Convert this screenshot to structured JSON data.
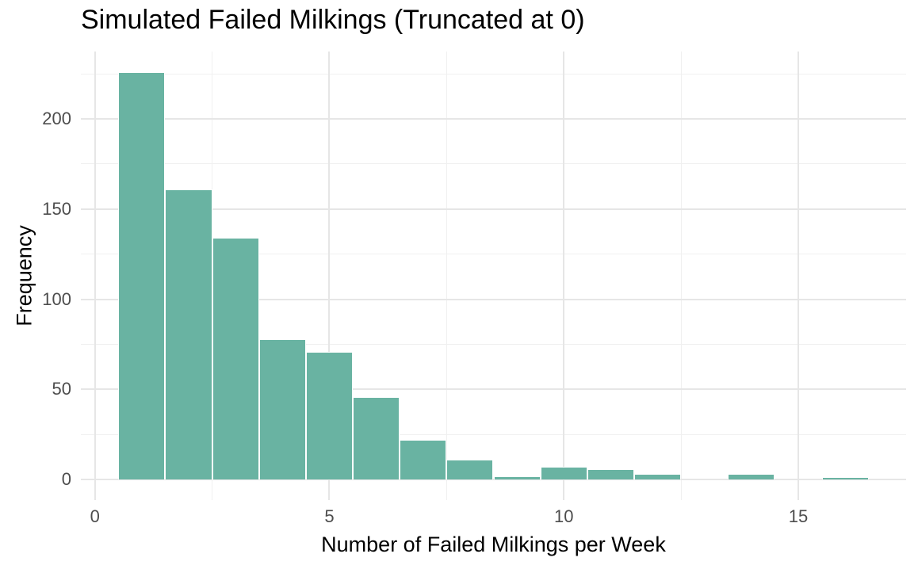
{
  "page": {
    "background": "#ffffff"
  },
  "chart_data": {
    "type": "bar",
    "variant": "histogram",
    "title": "Simulated Failed Milkings (Truncated at 0)",
    "xlabel": "Number of Failed Milkings per Week",
    "ylabel": "Frequency",
    "bin_centers": [
      1,
      2,
      3,
      4,
      5,
      6,
      7,
      8,
      9,
      10,
      11,
      12,
      13,
      14,
      15,
      16
    ],
    "counts": [
      226,
      161,
      134,
      78,
      71,
      46,
      22,
      11,
      2,
      7,
      6,
      3,
      0,
      3,
      0,
      1
    ],
    "binwidth": 1,
    "x_ticks": [
      0,
      5,
      10,
      15
    ],
    "y_ticks": [
      0,
      50,
      100,
      150,
      200
    ],
    "xlim": [
      -0.3,
      17.3
    ],
    "ylim": [
      -11.3,
      237.3
    ],
    "grid": "major+minor",
    "legend": "none",
    "colors": {
      "bar_fill": "#69b3a2",
      "bar_stroke": "#ffffff",
      "grid_major": "#e6e6e6",
      "grid_minor": "#f0f0f0",
      "tick_label": "#4d4d4d",
      "title": "#000000",
      "axis_title": "#000000",
      "panel_background": "#ffffff"
    }
  }
}
